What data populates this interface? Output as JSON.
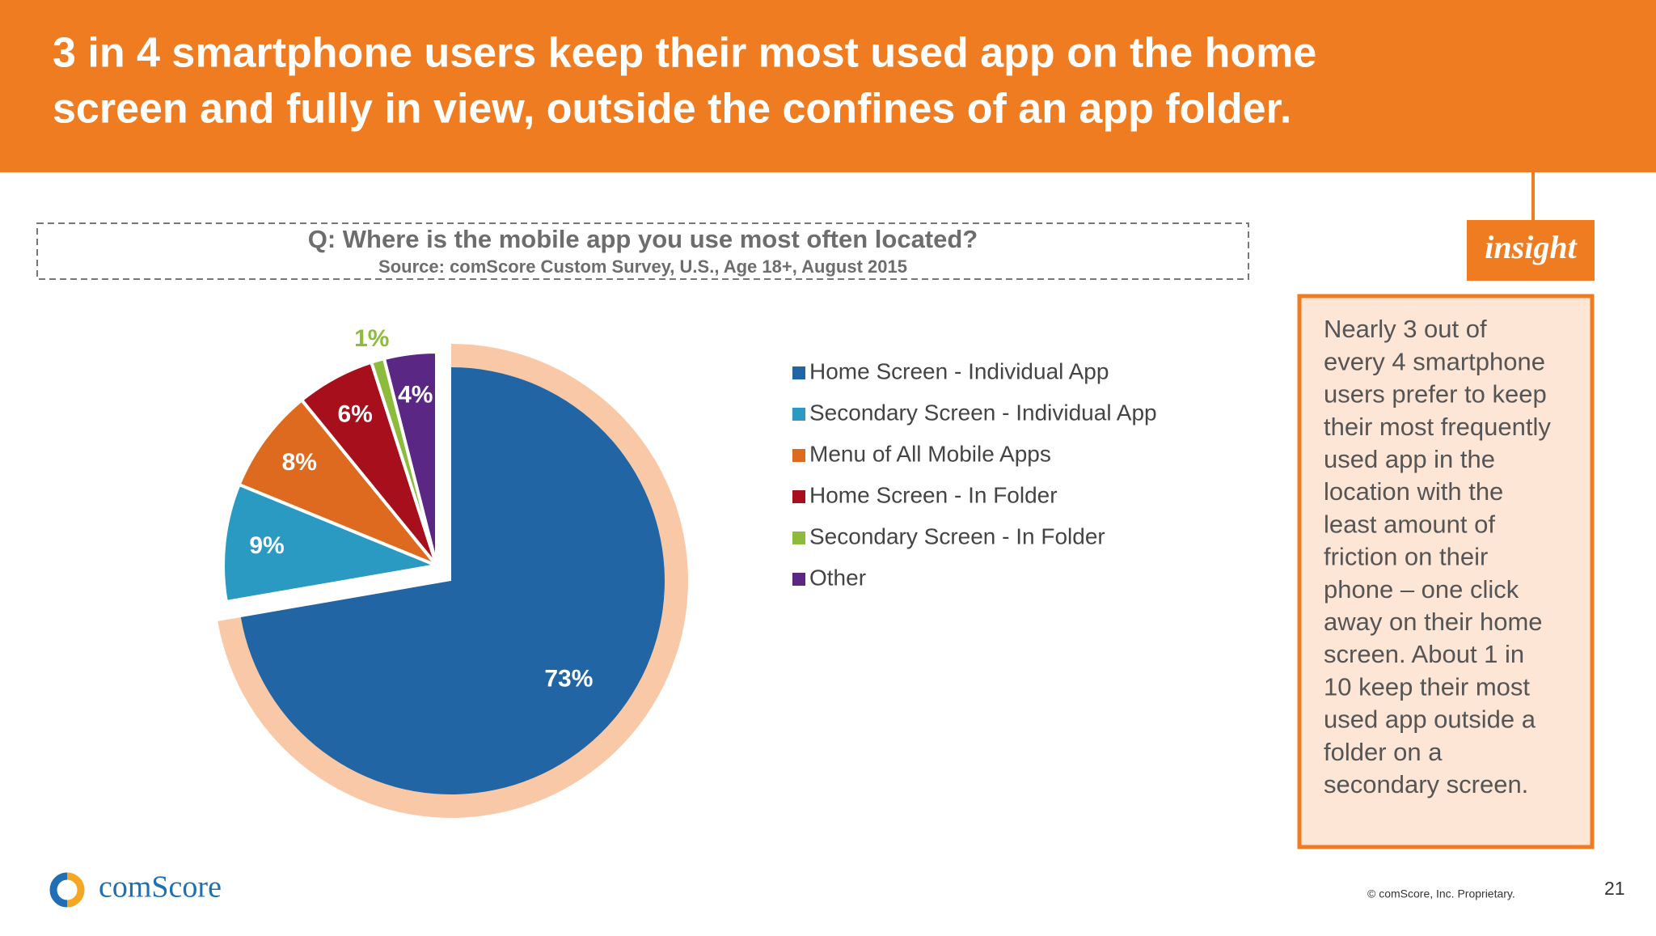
{
  "slide": {
    "title": [
      "3 in 4 smartphone users keep their most used app on the home",
      "screen and fully in view, outside the confines of an app folder."
    ],
    "insight_label": "insight",
    "insight_lines": [
      "Nearly 3 out of",
      "every 4 smartphone",
      "users prefer to keep",
      "their most frequently",
      "used app in the",
      "location with the",
      "least amount of",
      "friction on their",
      "phone – one click",
      "away on their home",
      "screen. About 1 in",
      "10 keep their most",
      "used app outside a",
      "folder on a",
      "secondary screen."
    ],
    "logo": "comScore",
    "copyright": "© comScore, Inc. Proprietary.",
    "page_number": "21"
  },
  "chart_data": {
    "type": "pie",
    "title": "Q: Where is the mobile app you use most often located?",
    "subtitle": "Source: comScore Custom Survey, U.S., Age 18+, August 2015",
    "categories": [
      "Home Screen - Individual App",
      "Secondary Screen - Individual App",
      "Menu of All Mobile Apps",
      "Home Screen - In Folder",
      "Secondary Screen - In Folder",
      "Other"
    ],
    "values": [
      73,
      9,
      8,
      6,
      1,
      4
    ],
    "value_labels": [
      "73%",
      "9%",
      "8%",
      "6%",
      "1%",
      "4%"
    ],
    "colors": [
      "#2265a4",
      "#2b9ac2",
      "#dd6a1f",
      "#a80f1d",
      "#8dbb3c",
      "#5a2784"
    ],
    "legend": "right"
  }
}
